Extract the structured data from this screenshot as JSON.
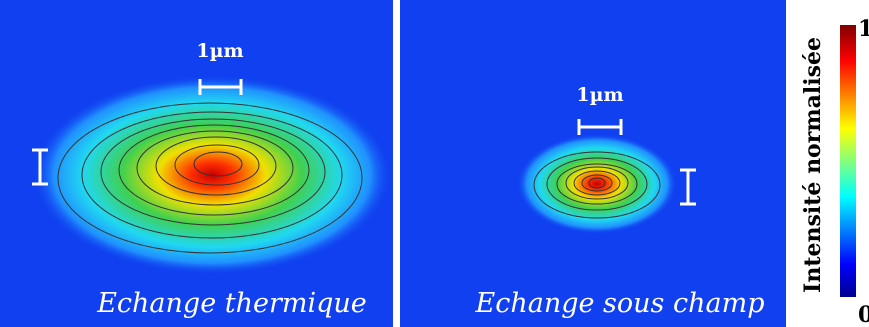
{
  "panels": [
    {
      "label": "Echange thermique",
      "scale_label": "1µm"
    },
    {
      "label": "Echange sous champ",
      "scale_label": "1µm"
    }
  ],
  "colorbar": {
    "title": "Intensité normalisée",
    "max": "1",
    "min": "0"
  }
}
